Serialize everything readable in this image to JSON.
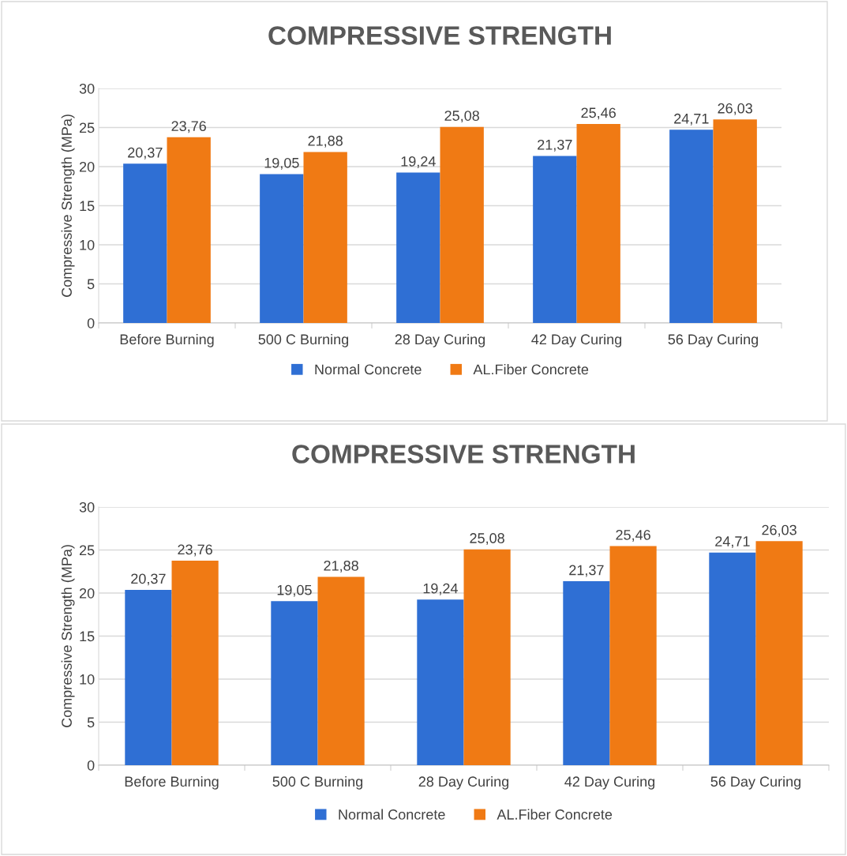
{
  "chart_data": [
    {
      "type": "bar",
      "title": "COMPRESSIVE STRENGTH",
      "ylabel": "Compressive Strength (MPa)",
      "categories": [
        "Before Burning",
        "500 C Burning",
        "28 Day Curing",
        "42 Day Curing",
        "56 Day Curing"
      ],
      "series": [
        {
          "name": "Normal Concrete",
          "color": "#2f6fd4",
          "values": [
            20.37,
            19.05,
            19.24,
            21.37,
            24.71
          ],
          "value_labels": [
            "20,37",
            "19,05",
            "19,24",
            "21,37",
            "24,71"
          ]
        },
        {
          "name": "AL.Fiber Concrete",
          "color": "#f07a14",
          "values": [
            23.76,
            21.88,
            25.08,
            25.46,
            26.03
          ],
          "value_labels": [
            "23,76",
            "21,88",
            "25,08",
            "25,46",
            "26,03"
          ]
        }
      ],
      "ylim": [
        0,
        30
      ],
      "yticks": [
        0,
        5,
        10,
        15,
        20,
        25,
        30
      ],
      "grid": "y",
      "legend": "bottom"
    },
    {
      "type": "bar",
      "title": "COMPRESSIVE STRENGTH",
      "ylabel": "Compressive Strength (MPa)",
      "categories": [
        "Before Burning",
        "500 C Burning",
        "28 Day Curing",
        "42 Day Curing",
        "56 Day Curing"
      ],
      "series": [
        {
          "name": "Normal Concrete",
          "color": "#2f6fd4",
          "values": [
            20.37,
            19.05,
            19.24,
            21.37,
            24.71
          ],
          "value_labels": [
            "20,37",
            "19,05",
            "19,24",
            "21,37",
            "24,71"
          ]
        },
        {
          "name": "AL.Fiber Concrete",
          "color": "#f07a14",
          "values": [
            23.76,
            21.88,
            25.08,
            25.46,
            26.03
          ],
          "value_labels": [
            "23,76",
            "21,88",
            "25,08",
            "25,46",
            "26,03"
          ]
        }
      ],
      "ylim": [
        0,
        30
      ],
      "yticks": [
        0,
        5,
        10,
        15,
        20,
        25,
        30
      ],
      "grid": "y",
      "legend": "bottom"
    }
  ]
}
